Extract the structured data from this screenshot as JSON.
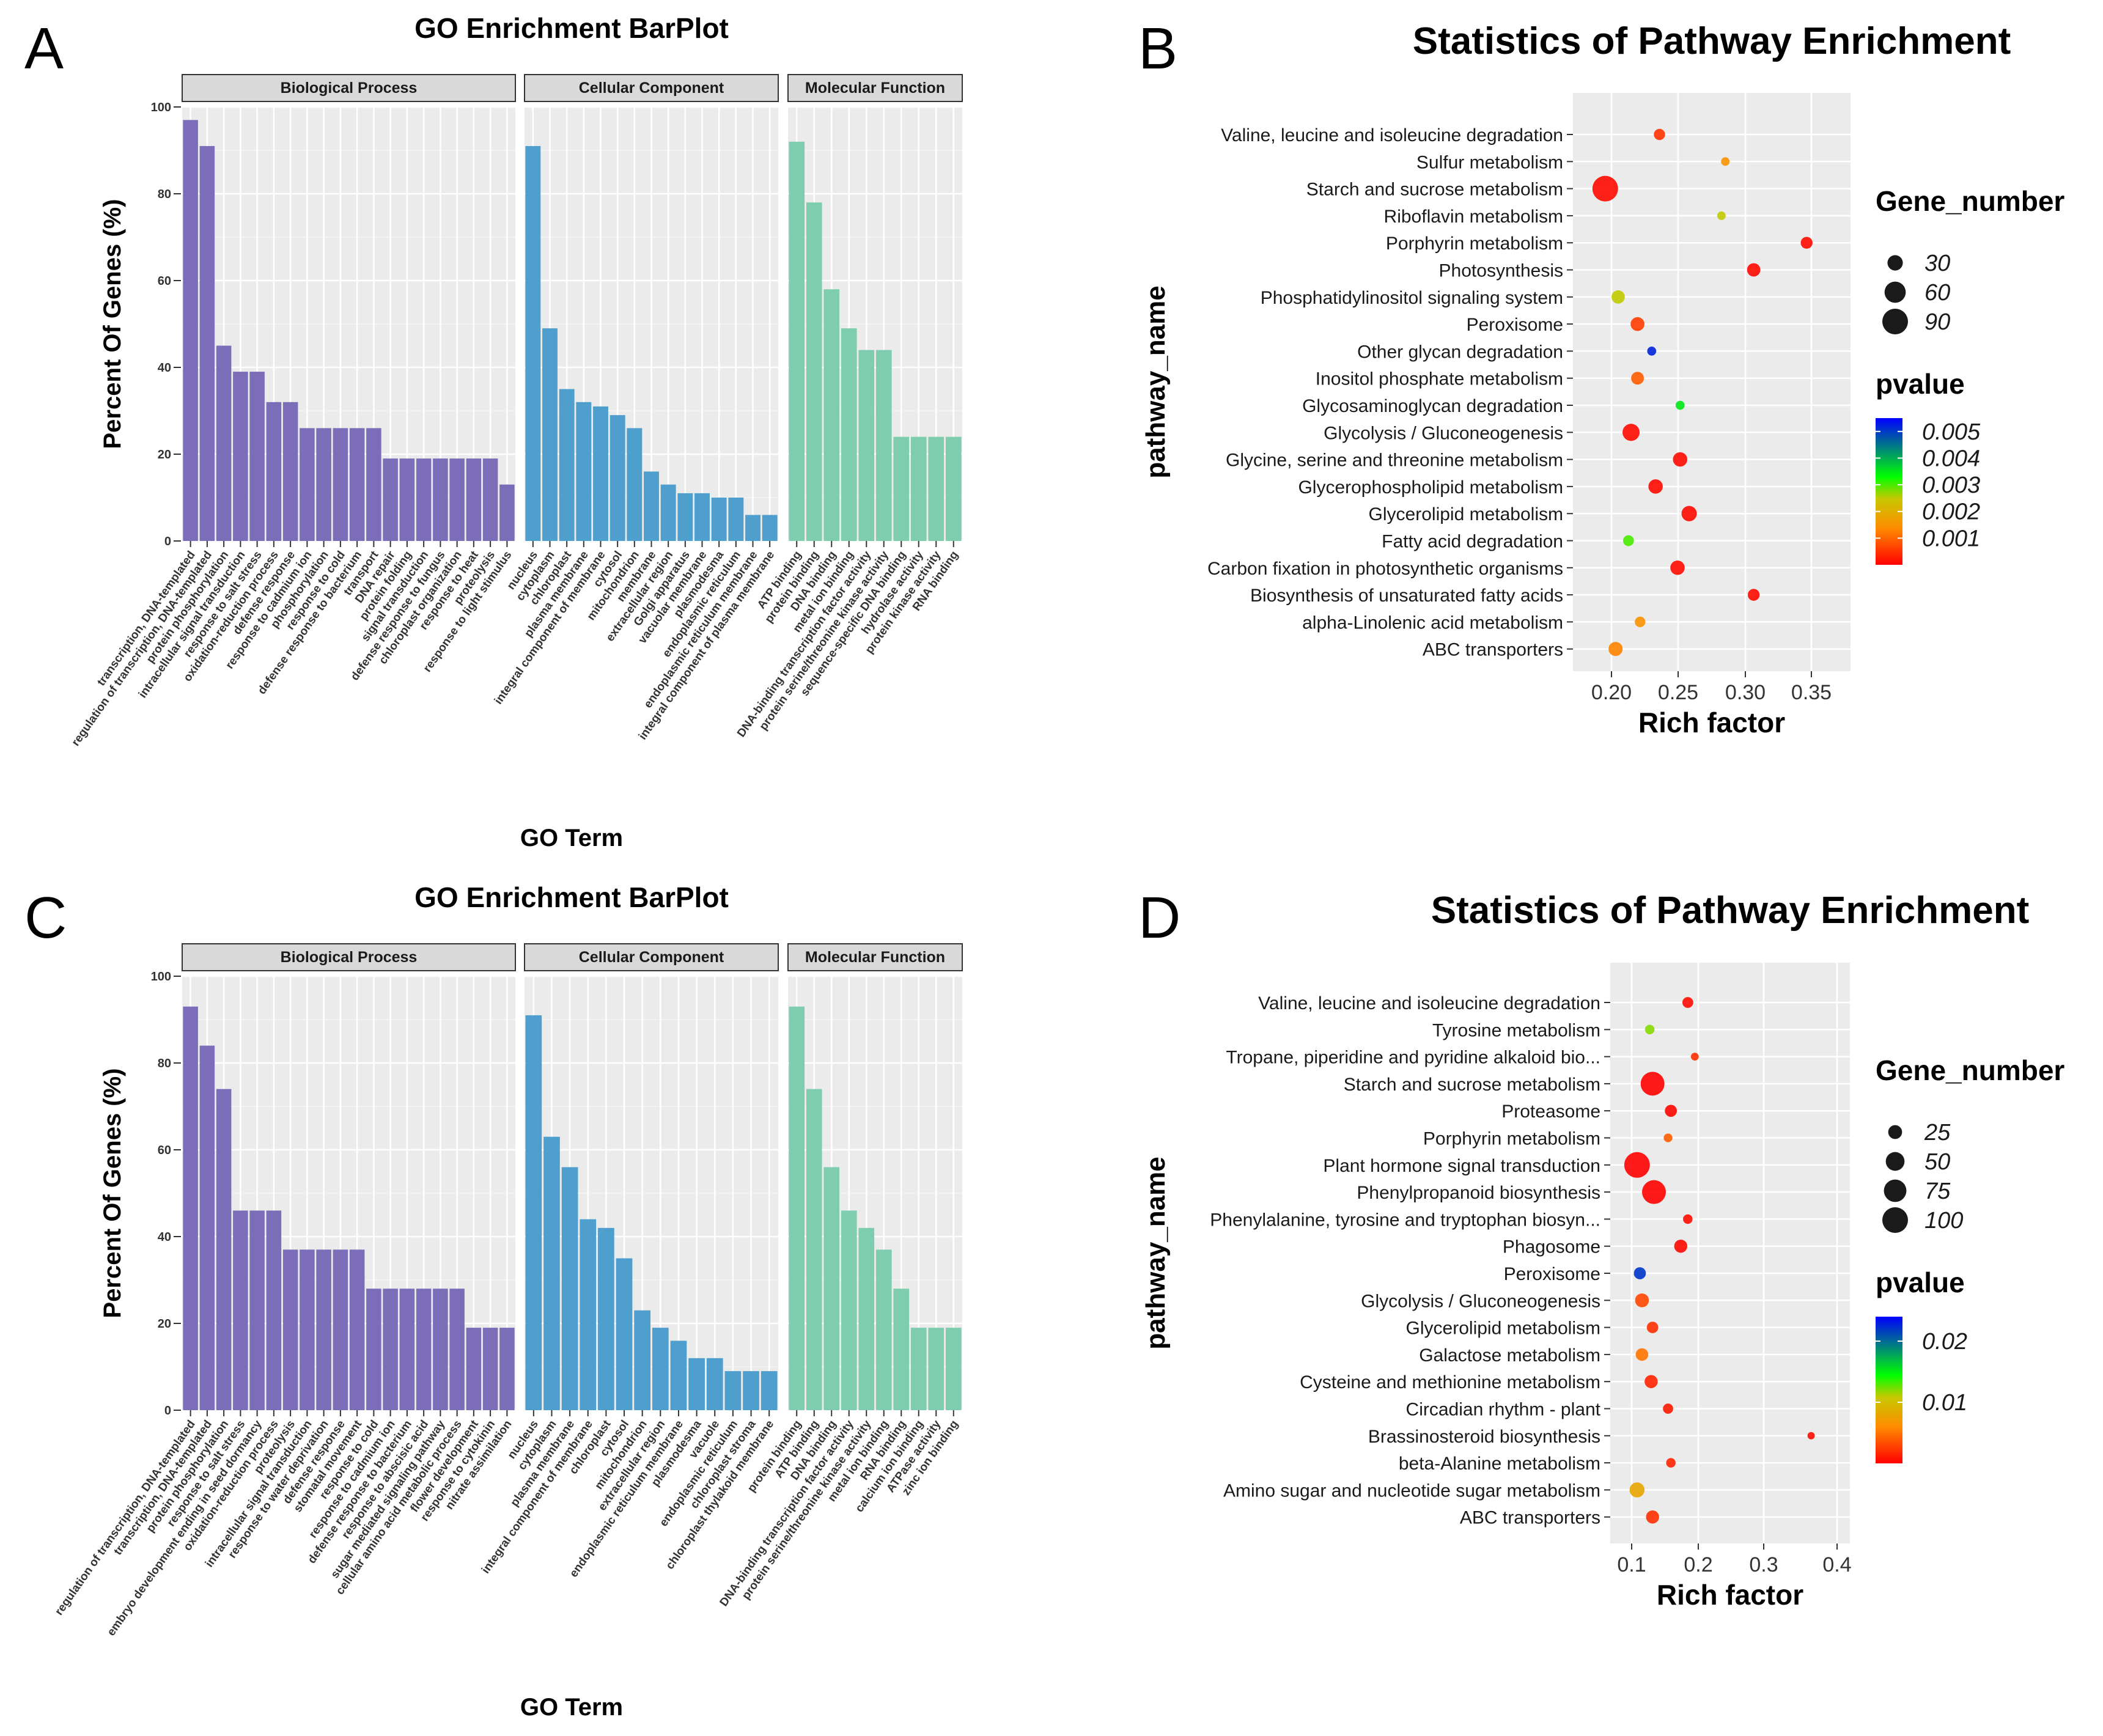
{
  "chart_data": [
    {
      "type": "bar",
      "panel_letter": "A",
      "title": "GO Enrichment BarPlot",
      "xlabel": "GO Term",
      "ylabel": "Percent Of Genes (%)",
      "ylim": [
        0,
        100
      ],
      "yticks": [
        0,
        20,
        40,
        60,
        80,
        100
      ],
      "color_bp": "#7B6DB8",
      "color_cc": "#4F9FCE",
      "color_mf": "#7FCDAF",
      "facets": [
        {
          "name": "Biological Process",
          "categories": [
            "transcription, DNA-templated",
            "regulation of transcription, DNA-templated",
            "protein phosphorylation",
            "intracellular signal transduction",
            "response to salt stress",
            "oxidation-reduction process",
            "defense response",
            "response to cadmium ion",
            "phosphorylation",
            "response to cold",
            "defense response to bacterium",
            "transport",
            "DNA repair",
            "protein folding",
            "signal transduction",
            "defense response to fungus",
            "chloroplast organization",
            "response to heat",
            "proteolysis",
            "response to light stimulus"
          ],
          "values": [
            97,
            91,
            45,
            39,
            39,
            32,
            32,
            26,
            26,
            26,
            26,
            26,
            19,
            19,
            19,
            19,
            19,
            19,
            19,
            13
          ]
        },
        {
          "name": "Cellular Component",
          "categories": [
            "nucleus",
            "cytoplasm",
            "chloroplast",
            "plasma membrane",
            "integral component of membrane",
            "cytosol",
            "mitochondrion",
            "membrane",
            "extracellular region",
            "Golgi apparatus",
            "vacuolar membrane",
            "plasmodesma",
            "endoplasmic reticulum",
            "endoplasmic reticulum membrane",
            "integral component of plasma membrane"
          ],
          "values": [
            91,
            49,
            35,
            32,
            31,
            29,
            26,
            16,
            13,
            11,
            11,
            10,
            10,
            6,
            6
          ]
        },
        {
          "name": "Molecular Function",
          "categories": [
            "ATP binding",
            "protein binding",
            "DNA binding",
            "metal ion binding",
            "DNA-binding transcription factor activity",
            "protein serine/threonine kinase activity",
            "sequence-specific DNA binding",
            "hydrolase activity",
            "protein kinase activity",
            "RNA binding"
          ],
          "values": [
            92,
            78,
            58,
            49,
            44,
            44,
            24,
            24,
            24,
            24
          ]
        }
      ]
    },
    {
      "type": "scatter",
      "panel_letter": "B",
      "title": "Statistics of Pathway Enrichment",
      "xlabel": "Rich factor",
      "ylabel": "pathway_name",
      "xlim": [
        0.165,
        0.38
      ],
      "xticks": [
        "0.20",
        "0.25",
        "0.30",
        "0.35"
      ],
      "size_legend_title": "Gene_number",
      "size_legend": [
        30,
        60,
        90
      ],
      "size_range": [
        8,
        90
      ],
      "color_legend_title": "pvalue",
      "color_legend": [
        "0.005",
        "0.004",
        "0.003",
        "0.002",
        "0.001"
      ],
      "pvalue_range": [
        0,
        0.0055
      ],
      "points": [
        {
          "pathway": "Valine, leucine and isoleucine degradation",
          "rich": 0.232,
          "genes": 15,
          "pvalue": 0.0005
        },
        {
          "pathway": "Sulfur metabolism",
          "rich": 0.283,
          "genes": 8,
          "pvalue": 0.0015
        },
        {
          "pathway": "Starch and sucrose metabolism",
          "rich": 0.19,
          "genes": 90,
          "pvalue": 0.0001
        },
        {
          "pathway": "Riboflavin metabolism",
          "rich": 0.28,
          "genes": 8,
          "pvalue": 0.0025
        },
        {
          "pathway": "Porphyrin metabolism",
          "rich": 0.346,
          "genes": 17,
          "pvalue": 0.0001
        },
        {
          "pathway": "Photosynthesis",
          "rich": 0.305,
          "genes": 22,
          "pvalue": 0.0001
        },
        {
          "pathway": "Phosphatidylinositol signaling system",
          "rich": 0.2,
          "genes": 22,
          "pvalue": 0.0025
        },
        {
          "pathway": "Peroxisome",
          "rich": 0.215,
          "genes": 24,
          "pvalue": 0.0006
        },
        {
          "pathway": "Other glycan degradation",
          "rich": 0.226,
          "genes": 9,
          "pvalue": 0.0052
        },
        {
          "pathway": "Inositol phosphate metabolism",
          "rich": 0.215,
          "genes": 20,
          "pvalue": 0.0009
        },
        {
          "pathway": "Glycosaminoglycan degradation",
          "rich": 0.248,
          "genes": 9,
          "pvalue": 0.0035
        },
        {
          "pathway": "Glycolysis / Gluconeogenesis",
          "rich": 0.21,
          "genes": 38,
          "pvalue": 0.0001
        },
        {
          "pathway": "Glycine, serine and threonine metabolism",
          "rich": 0.248,
          "genes": 26,
          "pvalue": 0.0001
        },
        {
          "pathway": "Glycerophospholipid metabolism",
          "rich": 0.229,
          "genes": 26,
          "pvalue": 0.0001
        },
        {
          "pathway": "Glycerolipid metabolism",
          "rich": 0.255,
          "genes": 30,
          "pvalue": 0.0001
        },
        {
          "pathway": "Fatty acid degradation",
          "rich": 0.208,
          "genes": 14,
          "pvalue": 0.003
        },
        {
          "pathway": "Carbon fixation in photosynthetic organisms",
          "rich": 0.246,
          "genes": 26,
          "pvalue": 0.0001
        },
        {
          "pathway": "Biosynthesis of unsaturated fatty acids",
          "rich": 0.305,
          "genes": 17,
          "pvalue": 0.0001
        },
        {
          "pathway": "alpha-Linolenic acid metabolism",
          "rich": 0.217,
          "genes": 13,
          "pvalue": 0.0015
        },
        {
          "pathway": "ABC transporters",
          "rich": 0.198,
          "genes": 25,
          "pvalue": 0.0013
        }
      ]
    },
    {
      "type": "bar",
      "panel_letter": "C",
      "title": "GO Enrichment BarPlot",
      "xlabel": "GO Term",
      "ylabel": "Percent Of Genes (%)",
      "ylim": [
        0,
        100
      ],
      "yticks": [
        0,
        20,
        40,
        60,
        80,
        100
      ],
      "color_bp": "#7B6DB8",
      "color_cc": "#4F9FCE",
      "color_mf": "#7FCDAF",
      "facets": [
        {
          "name": "Biological Process",
          "categories": [
            "regulation of transcription, DNA-templated",
            "transcription, DNA-templated",
            "protein phosphorylation",
            "response to salt stress",
            "embryo development ending in seed dormancy",
            "oxidation-reduction process",
            "proteolysis",
            "intracellular signal transduction",
            "response to water deprivation",
            "defense response",
            "stomatal movement",
            "response to cold",
            "response to cadmium ion",
            "defense response to bacterium",
            "response to abscisic acid",
            "sugar mediated signaling pathway",
            "cellular amino acid metabolic process",
            "flower development",
            "response to cytokinin",
            "nitrate assimilation"
          ],
          "values": [
            93,
            84,
            74,
            46,
            46,
            46,
            37,
            37,
            37,
            37,
            37,
            28,
            28,
            28,
            28,
            28,
            28,
            19,
            19,
            19
          ]
        },
        {
          "name": "Cellular Component",
          "categories": [
            "nucleus",
            "cytoplasm",
            "plasma membrane",
            "integral component of membrane",
            "chloroplast",
            "cytosol",
            "mitochondrion",
            "extracellular region",
            "endoplasmic reticulum membrane",
            "plasmodesma",
            "vacuole",
            "endoplasmic reticulum",
            "chloroplast stroma",
            "chloroplast thylakoid membrane"
          ],
          "values": [
            91,
            63,
            56,
            44,
            42,
            35,
            23,
            19,
            16,
            12,
            12,
            9,
            9,
            9
          ]
        },
        {
          "name": "Molecular Function",
          "categories": [
            "protein binding",
            "ATP binding",
            "DNA binding",
            "DNA-binding transcription factor activity",
            "protein serine/threonine kinase activity",
            "metal ion binding",
            "RNA binding",
            "calcium ion binding",
            "ATPase activity",
            "zinc ion binding"
          ],
          "values": [
            93,
            74,
            56,
            46,
            42,
            37,
            28,
            19,
            19,
            19
          ]
        }
      ]
    },
    {
      "type": "scatter",
      "panel_letter": "D",
      "title": "Statistics of Pathway Enrichment",
      "xlabel": "Rich factor",
      "ylabel": "pathway_name",
      "xlim": [
        0.08,
        0.42
      ],
      "xticks": [
        "0.1",
        "0.2",
        "0.3",
        "0.4"
      ],
      "size_legend_title": "Gene_number",
      "size_legend": [
        25,
        50,
        75,
        100
      ],
      "size_range": [
        5,
        100
      ],
      "color_legend_title": "pvalue",
      "color_legend": [
        "0.02",
        "0.01"
      ],
      "pvalue_range": [
        0,
        0.024
      ],
      "points": [
        {
          "pathway": "Valine, leucine and isoleucine degradation",
          "rich": 0.19,
          "genes": 14,
          "pvalue": 0.0005
        },
        {
          "pathway": "Tyrosine metabolism",
          "rich": 0.136,
          "genes": 10,
          "pvalue": 0.012
        },
        {
          "pathway": "Tropane, piperidine and pyridine alkaloid bio...",
          "rich": 0.2,
          "genes": 6,
          "pvalue": 0.002
        },
        {
          "pathway": "Starch and sucrose metabolism",
          "rich": 0.14,
          "genes": 85,
          "pvalue": 0.0001
        },
        {
          "pathway": "Proteasome",
          "rich": 0.166,
          "genes": 18,
          "pvalue": 0.0002
        },
        {
          "pathway": "Porphyrin metabolism",
          "rich": 0.162,
          "genes": 8,
          "pvalue": 0.004
        },
        {
          "pathway": "Plant hormone signal transduction",
          "rich": 0.118,
          "genes": 100,
          "pvalue": 0.0001
        },
        {
          "pathway": "Phenylpropanoid biosynthesis",
          "rich": 0.142,
          "genes": 85,
          "pvalue": 0.0001
        },
        {
          "pathway": "Phenylalanine, tyrosine and tryptophan biosyn...",
          "rich": 0.19,
          "genes": 10,
          "pvalue": 0.0005
        },
        {
          "pathway": "Phagosome",
          "rich": 0.18,
          "genes": 22,
          "pvalue": 0.0003
        },
        {
          "pathway": "Peroxisome",
          "rich": 0.122,
          "genes": 18,
          "pvalue": 0.022
        },
        {
          "pathway": "Glycolysis / Gluconeogenesis",
          "rich": 0.125,
          "genes": 25,
          "pvalue": 0.003
        },
        {
          "pathway": "Glycerolipid metabolism",
          "rich": 0.14,
          "genes": 16,
          "pvalue": 0.002
        },
        {
          "pathway": "Galactose metabolism",
          "rich": 0.125,
          "genes": 20,
          "pvalue": 0.005
        },
        {
          "pathway": "Cysteine and methionine metabolism",
          "rich": 0.138,
          "genes": 22,
          "pvalue": 0.0015
        },
        {
          "pathway": "Circadian rhythm - plant",
          "rich": 0.162,
          "genes": 12,
          "pvalue": 0.001
        },
        {
          "pathway": "Brassinosteroid biosynthesis",
          "rich": 0.365,
          "genes": 5,
          "pvalue": 0.0005
        },
        {
          "pathway": "beta-Alanine metabolism",
          "rich": 0.166,
          "genes": 10,
          "pvalue": 0.0015
        },
        {
          "pathway": "Amino sugar and nucleotide sugar metabolism",
          "rich": 0.118,
          "genes": 30,
          "pvalue": 0.008
        },
        {
          "pathway": "ABC transporters",
          "rich": 0.14,
          "genes": 22,
          "pvalue": 0.002
        }
      ]
    }
  ]
}
